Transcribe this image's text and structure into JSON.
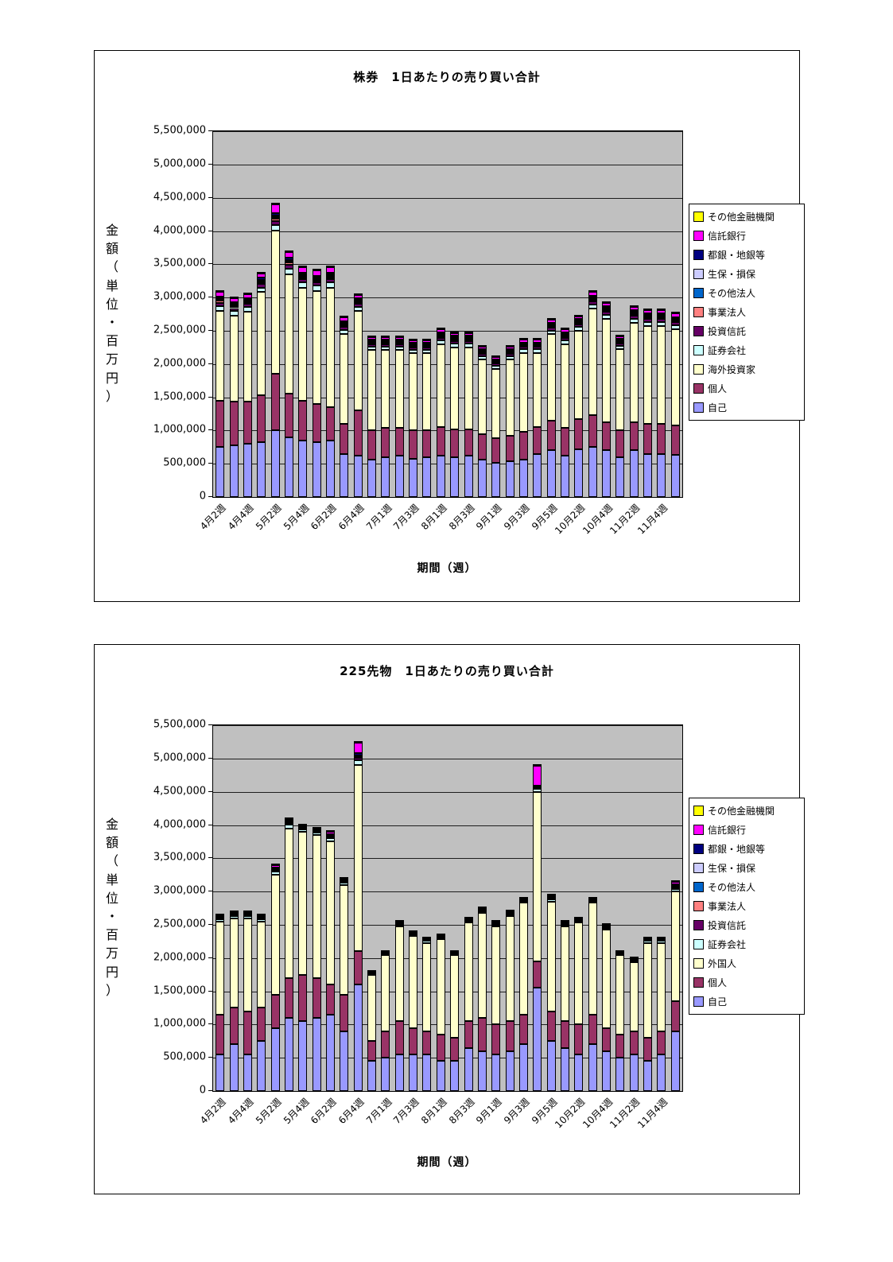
{
  "page": {
    "background": "#FFFFFF"
  },
  "chart_data": [
    {
      "type": "bar",
      "stacked": true,
      "title": "株券　1日あたりの売り買い合計",
      "x_axis_title": "期間（週）",
      "y_axis_title": "金額（単位・百万円）",
      "ylim": [
        0,
        5500000
      ],
      "ytick_step": 500000,
      "ytick_labels": [
        "0",
        "500,000",
        "1,000,000",
        "1,500,000",
        "2,000,000",
        "2,500,000",
        "3,000,000",
        "3,500,000",
        "4,000,000",
        "4,500,000",
        "5,000,000",
        "5,500,000"
      ],
      "plot_bg": "#C0C0C0",
      "grid": true,
      "legend_position": "right",
      "label_every": 2,
      "x_labels": [
        "4月2週",
        "4月4週",
        "5月2週",
        "5月4週",
        "6月2週",
        "6月4週",
        "7月1週",
        "7月3週",
        "8月1週",
        "8月3週",
        "9月1週",
        "9月3週",
        "9月5週",
        "10月2週",
        "10月4週",
        "11月2週",
        "11月4週"
      ],
      "series": [
        {
          "name": "自己",
          "color": "#9999FF",
          "values": [
            750000,
            780000,
            800000,
            830000,
            1000000,
            900000,
            850000,
            820000,
            850000,
            650000,
            620000,
            560000,
            600000,
            620000,
            580000,
            600000,
            620000,
            600000,
            620000,
            560000,
            520000,
            540000,
            560000,
            650000,
            700000,
            620000,
            720000,
            750000,
            700000,
            600000,
            700000,
            650000,
            640000,
            630000
          ]
        },
        {
          "name": "個人",
          "color": "#993366",
          "values": [
            700000,
            650000,
            640000,
            700000,
            850000,
            650000,
            600000,
            580000,
            500000,
            450000,
            680000,
            450000,
            440000,
            420000,
            420000,
            400000,
            430000,
            420000,
            400000,
            380000,
            360000,
            380000,
            420000,
            400000,
            450000,
            420000,
            450000,
            480000,
            430000,
            400000,
            420000,
            450000,
            460000,
            450000
          ]
        },
        {
          "name": "海外投資家",
          "color": "#FFFFCC",
          "values": [
            1350000,
            1300000,
            1350000,
            1550000,
            2150000,
            1800000,
            1700000,
            1700000,
            1800000,
            1350000,
            1500000,
            1200000,
            1170000,
            1170000,
            1160000,
            1160000,
            1250000,
            1230000,
            1230000,
            1130000,
            1050000,
            1150000,
            1190000,
            1120000,
            1300000,
            1260000,
            1330000,
            1600000,
            1550000,
            1220000,
            1500000,
            1470000,
            1470000,
            1440000
          ]
        },
        {
          "name": "証券会社",
          "color": "#CCFFFF",
          "values": [
            70000,
            65000,
            65000,
            70000,
            90000,
            85000,
            75000,
            75000,
            75000,
            65000,
            60000,
            50000,
            50000,
            50000,
            50000,
            50000,
            55000,
            55000,
            55000,
            50000,
            45000,
            50000,
            50000,
            50000,
            55000,
            55000,
            55000,
            65000,
            60000,
            50000,
            60000,
            60000,
            60000,
            60000
          ]
        },
        {
          "name": "投資信託",
          "color": "#660066",
          "values": [
            50000,
            45000,
            45000,
            50000,
            60000,
            55000,
            50000,
            50000,
            50000,
            45000,
            45000,
            35000,
            35000,
            35000,
            35000,
            35000,
            40000,
            40000,
            40000,
            35000,
            30000,
            35000,
            35000,
            35000,
            40000,
            40000,
            40000,
            45000,
            45000,
            35000,
            45000,
            45000,
            45000,
            45000
          ]
        },
        {
          "name": "事業法人",
          "color": "#FF8080",
          "values": [
            30000,
            28000,
            28000,
            30000,
            35000,
            32000,
            30000,
            30000,
            30000,
            28000,
            25000,
            22000,
            22000,
            22000,
            22000,
            22000,
            25000,
            25000,
            25000,
            22000,
            20000,
            22000,
            22000,
            22000,
            25000,
            25000,
            25000,
            28000,
            26000,
            22000,
            26000,
            26000,
            26000,
            26000
          ]
        },
        {
          "name": "その他法人",
          "color": "#0066CC",
          "values": [
            20000,
            18000,
            18000,
            20000,
            25000,
            22000,
            20000,
            20000,
            20000,
            18000,
            17000,
            15000,
            15000,
            15000,
            15000,
            15000,
            17000,
            17000,
            17000,
            15000,
            14000,
            15000,
            15000,
            15000,
            17000,
            17000,
            17000,
            18000,
            18000,
            15000,
            18000,
            18000,
            18000,
            18000
          ]
        },
        {
          "name": "生保・損保",
          "color": "#CCCCFF",
          "values": [
            20000,
            18000,
            18000,
            20000,
            25000,
            22000,
            20000,
            20000,
            20000,
            18000,
            17000,
            15000,
            15000,
            15000,
            15000,
            15000,
            17000,
            17000,
            17000,
            15000,
            14000,
            15000,
            15000,
            15000,
            17000,
            17000,
            17000,
            18000,
            18000,
            15000,
            18000,
            18000,
            18000,
            18000
          ]
        },
        {
          "name": "都銀・地銀等",
          "color": "#000080",
          "values": [
            25000,
            22000,
            22000,
            25000,
            30000,
            28000,
            25000,
            25000,
            25000,
            22000,
            20000,
            18000,
            18000,
            18000,
            18000,
            18000,
            20000,
            20000,
            20000,
            18000,
            16000,
            18000,
            18000,
            18000,
            20000,
            20000,
            20000,
            22000,
            20000,
            18000,
            20000,
            20000,
            20000,
            20000
          ]
        },
        {
          "name": "信託銀行",
          "color": "#FF00FF",
          "values": [
            70000,
            60000,
            60000,
            70000,
            130000,
            90000,
            85000,
            85000,
            85000,
            60000,
            55000,
            40000,
            40000,
            40000,
            40000,
            40000,
            45000,
            45000,
            45000,
            40000,
            35000,
            40000,
            40000,
            40000,
            45000,
            45000,
            45000,
            60000,
            50000,
            40000,
            50000,
            50000,
            50000,
            50000
          ]
        },
        {
          "name": "その他金融機関",
          "color": "#FFFF00",
          "values": [
            15000,
            14000,
            14000,
            15000,
            20000,
            18000,
            16000,
            16000,
            16000,
            14000,
            13000,
            11000,
            11000,
            11000,
            11000,
            11000,
            12000,
            12000,
            12000,
            11000,
            10000,
            11000,
            11000,
            11000,
            12000,
            12000,
            12000,
            14000,
            13000,
            11000,
            13000,
            13000,
            13000,
            13000
          ]
        }
      ]
    },
    {
      "type": "bar",
      "stacked": true,
      "title": "225先物　1日あたりの売り買い合計",
      "x_axis_title": "期間（週）",
      "y_axis_title": "金額（単位・百万円）",
      "ylim": [
        0,
        5500000
      ],
      "ytick_step": 500000,
      "ytick_labels": [
        "0",
        "500,000",
        "1,000,000",
        "1,500,000",
        "2,000,000",
        "2,500,000",
        "3,000,000",
        "3,500,000",
        "4,000,000",
        "4,500,000",
        "5,000,000",
        "5,500,000"
      ],
      "plot_bg": "#C0C0C0",
      "grid": true,
      "legend_position": "right",
      "label_every": 2,
      "x_labels": [
        "4月2週",
        "4月4週",
        "5月2週",
        "5月4週",
        "6月2週",
        "6月4週",
        "7月1週",
        "7月3週",
        "8月1週",
        "8月3週",
        "9月1週",
        "9月3週",
        "9月5週",
        "10月2週",
        "10月4週",
        "11月2週",
        "11月4週"
      ],
      "series": [
        {
          "name": "自己",
          "color": "#9999FF",
          "values": [
            550000,
            700000,
            550000,
            750000,
            950000,
            1100000,
            1050000,
            1100000,
            1150000,
            900000,
            1600000,
            450000,
            500000,
            550000,
            550000,
            550000,
            450000,
            450000,
            650000,
            600000,
            550000,
            600000,
            700000,
            1550000,
            750000,
            650000,
            550000,
            700000,
            600000,
            500000,
            550000,
            450000,
            550000,
            900000
          ]
        },
        {
          "name": "個人",
          "color": "#993366",
          "values": [
            600000,
            550000,
            650000,
            500000,
            500000,
            600000,
            700000,
            600000,
            450000,
            550000,
            500000,
            300000,
            400000,
            500000,
            400000,
            350000,
            400000,
            350000,
            400000,
            500000,
            450000,
            450000,
            450000,
            400000,
            450000,
            400000,
            450000,
            450000,
            350000,
            350000,
            350000,
            350000,
            350000,
            450000
          ]
        },
        {
          "name": "外国人",
          "color": "#FFFFCC",
          "values": [
            1400000,
            1350000,
            1400000,
            1300000,
            1800000,
            2250000,
            2150000,
            2150000,
            2150000,
            1650000,
            2800000,
            1000000,
            1150000,
            1430000,
            1380000,
            1330000,
            1430000,
            1240000,
            1480000,
            1580000,
            1480000,
            1580000,
            1680000,
            2550000,
            1650000,
            1430000,
            1530000,
            1680000,
            1480000,
            1190000,
            1040000,
            1430000,
            1330000,
            1650000
          ]
        },
        {
          "name": "証券会社",
          "color": "#CCFFFF",
          "values": [
            35000,
            35000,
            35000,
            35000,
            50000,
            50000,
            35000,
            35000,
            50000,
            35000,
            80000,
            20000,
            20000,
            25000,
            25000,
            25000,
            25000,
            20000,
            25000,
            25000,
            25000,
            25000,
            25000,
            40000,
            35000,
            25000,
            25000,
            25000,
            25000,
            20000,
            20000,
            25000,
            25000,
            40000
          ]
        },
        {
          "name": "投資信託",
          "color": "#660066",
          "values": [
            10000,
            10000,
            10000,
            10000,
            15000,
            15000,
            10000,
            10000,
            15000,
            10000,
            25000,
            5000,
            5000,
            8000,
            8000,
            8000,
            8000,
            6000,
            8000,
            8000,
            8000,
            8000,
            8000,
            15000,
            10000,
            8000,
            8000,
            8000,
            8000,
            6000,
            6000,
            8000,
            8000,
            15000
          ]
        },
        {
          "name": "事業法人",
          "color": "#FF8080",
          "values": [
            6000,
            6000,
            6000,
            6000,
            9000,
            9000,
            6000,
            6000,
            9000,
            6000,
            15000,
            3000,
            3000,
            5000,
            5000,
            5000,
            5000,
            4000,
            5000,
            5000,
            5000,
            5000,
            5000,
            8000,
            6000,
            5000,
            5000,
            5000,
            5000,
            4000,
            4000,
            5000,
            5000,
            9000
          ]
        },
        {
          "name": "その他法人",
          "color": "#0066CC",
          "values": [
            6000,
            6000,
            6000,
            6000,
            9000,
            9000,
            6000,
            6000,
            9000,
            6000,
            15000,
            3000,
            3000,
            5000,
            5000,
            5000,
            5000,
            4000,
            5000,
            5000,
            5000,
            5000,
            5000,
            8000,
            6000,
            5000,
            5000,
            5000,
            5000,
            4000,
            4000,
            5000,
            5000,
            9000
          ]
        },
        {
          "name": "生保・損保",
          "color": "#CCCCFF",
          "values": [
            6000,
            6000,
            6000,
            6000,
            9000,
            9000,
            6000,
            6000,
            9000,
            6000,
            15000,
            3000,
            3000,
            5000,
            5000,
            5000,
            5000,
            4000,
            5000,
            5000,
            5000,
            5000,
            5000,
            8000,
            6000,
            5000,
            5000,
            5000,
            5000,
            4000,
            4000,
            5000,
            5000,
            9000
          ]
        },
        {
          "name": "都銀・地銀等",
          "color": "#000080",
          "values": [
            12000,
            12000,
            12000,
            12000,
            18000,
            18000,
            12000,
            12000,
            18000,
            12000,
            35000,
            6000,
            6000,
            9000,
            9000,
            9000,
            9000,
            7000,
            9000,
            9000,
            9000,
            9000,
            9000,
            16000,
            12000,
            9000,
            9000,
            9000,
            9000,
            7000,
            7000,
            9000,
            9000,
            30000
          ]
        },
        {
          "name": "信託銀行",
          "color": "#FF00FF",
          "values": [
            20000,
            20000,
            20000,
            20000,
            35000,
            35000,
            20000,
            20000,
            35000,
            20000,
            150000,
            8000,
            8000,
            10000,
            10000,
            10000,
            10000,
            12000,
            10000,
            10000,
            10000,
            10000,
            10000,
            300000,
            20000,
            10000,
            10000,
            10000,
            10000,
            12000,
            12000,
            10000,
            10000,
            35000
          ]
        },
        {
          "name": "その他金融機関",
          "color": "#FFFF00",
          "values": [
            5000,
            5000,
            5000,
            5000,
            5000,
            5000,
            5000,
            5000,
            5000,
            5000,
            10000,
            2000,
            2000,
            3000,
            3000,
            3000,
            3000,
            3000,
            3000,
            3000,
            3000,
            3000,
            3000,
            5000,
            5000,
            3000,
            3000,
            3000,
            3000,
            3000,
            3000,
            3000,
            3000,
            12000
          ]
        }
      ]
    }
  ]
}
